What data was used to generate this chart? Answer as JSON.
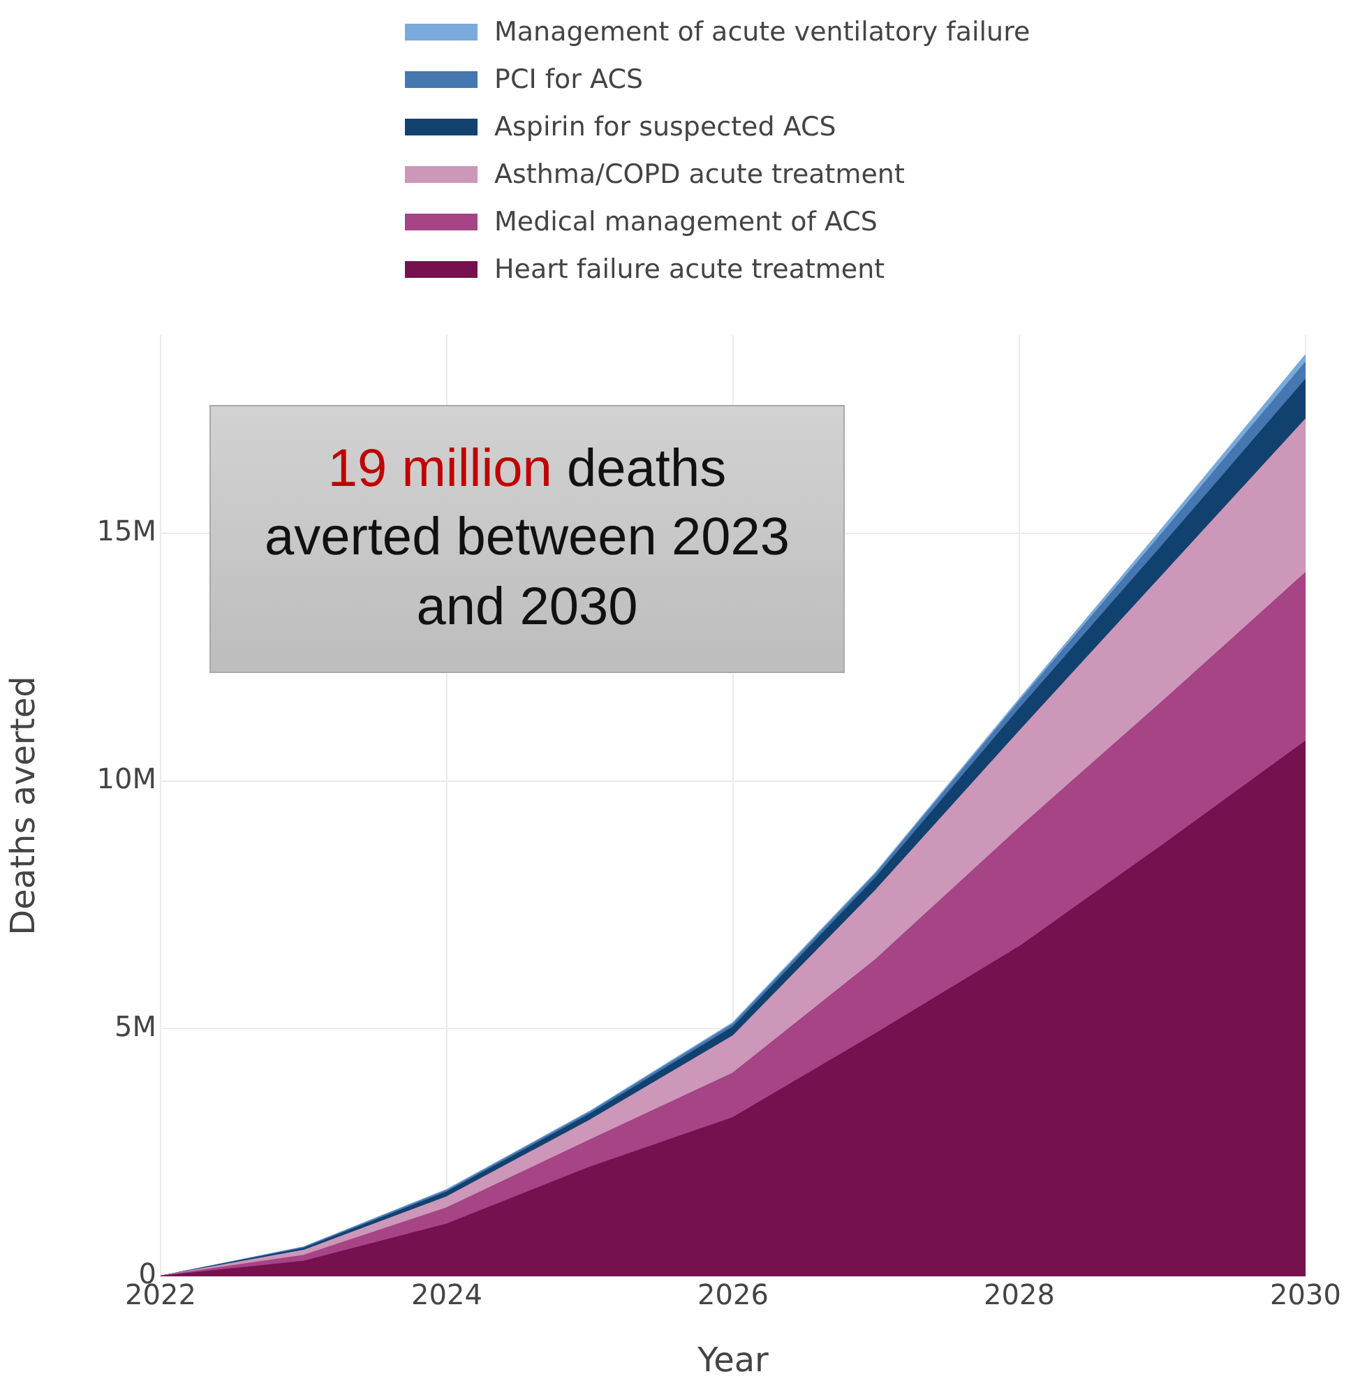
{
  "chart_data": {
    "type": "area",
    "stacked": true,
    "xlabel": "Year",
    "ylabel": "Deaths averted",
    "x": [
      2022,
      2023,
      2024,
      2025,
      2026,
      2027,
      2028,
      2029,
      2030
    ],
    "series": [
      {
        "name": "Heart failure acute treatment",
        "color": "#75114f",
        "values": [
          0,
          300000,
          1050000,
          2200000,
          3200000,
          4900000,
          6650000,
          8700000,
          10800000
        ]
      },
      {
        "name": "Medical management of ACS",
        "color": "#a64486",
        "values": [
          0,
          120000,
          330000,
          550000,
          900000,
          1500000,
          2400000,
          2900000,
          3400000
        ]
      },
      {
        "name": "Asthma/COPD acute treatment",
        "color": "#cc97b8",
        "values": [
          0,
          100000,
          220000,
          400000,
          750000,
          1400000,
          1950000,
          2550000,
          3100000
        ]
      },
      {
        "name": "Aspirin for suspected ACS",
        "color": "#11416f",
        "values": [
          0,
          40000,
          100000,
          120000,
          180000,
          250000,
          450000,
          600000,
          800000
        ]
      },
      {
        "name": "PCI for ACS",
        "color": "#4677b0",
        "values": [
          0,
          20000,
          30000,
          40000,
          60000,
          80000,
          150000,
          250000,
          350000
        ]
      },
      {
        "name": "Management of acute ventilatory failure",
        "color": "#7aa9dc",
        "values": [
          0,
          10000,
          20000,
          20000,
          30000,
          30000,
          50000,
          100000,
          150000
        ]
      }
    ],
    "xlim": [
      2022,
      2030
    ],
    "xticks": [
      2022,
      2024,
      2026,
      2028,
      2030
    ],
    "ylim": [
      0,
      19000000
    ],
    "yticks": [
      0,
      {
        "value": 5000000,
        "label": "5M"
      },
      {
        "value": 10000000,
        "label": "10M"
      },
      {
        "value": 15000000,
        "label": "15M"
      }
    ],
    "grid": true,
    "legend": "top",
    "annotations": [
      "19 million",
      "deaths averted between 2023 and 2030"
    ]
  }
}
